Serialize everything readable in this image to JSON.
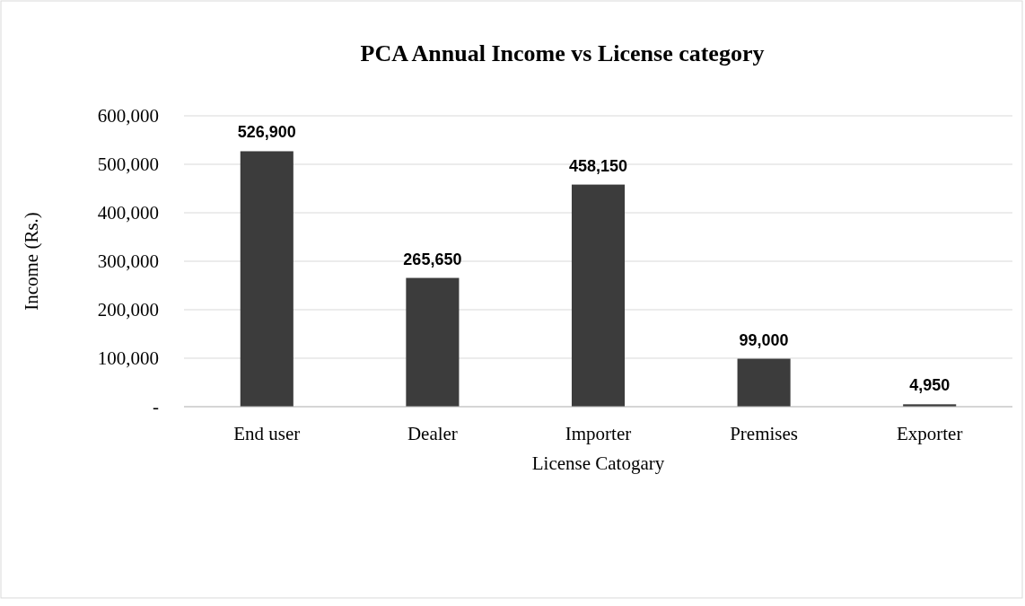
{
  "chart_data": {
    "type": "bar",
    "title": "PCA Annual Income vs License category",
    "xlabel": "License Catogary",
    "ylabel": "Income (Rs.)",
    "categories": [
      "End user",
      "Dealer",
      "Importer",
      "Premises",
      "Exporter"
    ],
    "values": [
      526900,
      265650,
      458150,
      99000,
      4950
    ],
    "color": "#3c3c3c",
    "ylim": [
      0,
      600000
    ],
    "yticks": [
      {
        "value": 0,
        "label": "-"
      },
      {
        "value": 100000,
        "label": "100,000"
      },
      {
        "value": 200000,
        "label": "200,000"
      },
      {
        "value": 300000,
        "label": "300,000"
      },
      {
        "value": 400000,
        "label": "400,000"
      },
      {
        "value": 500000,
        "label": "500,000"
      },
      {
        "value": 600000,
        "label": "600,000"
      }
    ],
    "value_labels": [
      "526,900",
      "265,650",
      "458,150",
      "99,000",
      "4,950"
    ],
    "grid": "y"
  }
}
